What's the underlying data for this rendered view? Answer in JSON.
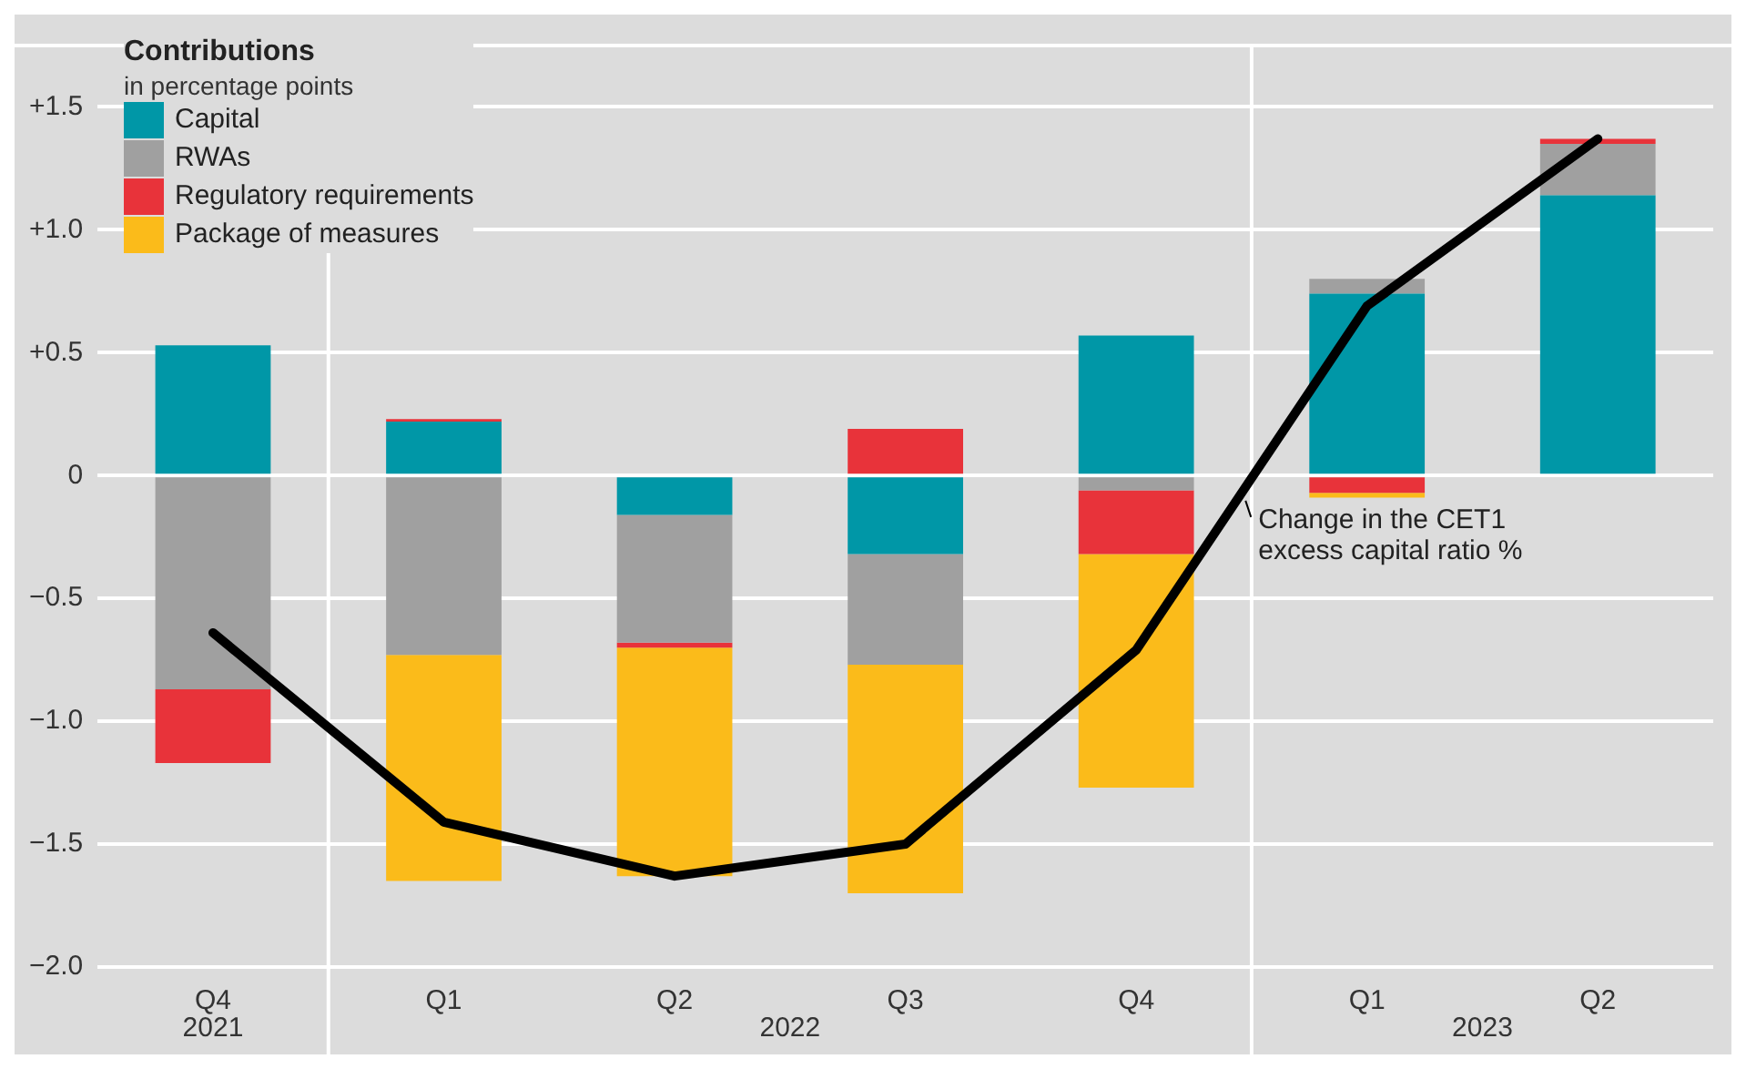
{
  "chart_data": {
    "type": "bar",
    "stacked": true,
    "legend_title": "Contributions",
    "subtitle": "in percentage points",
    "categories": [
      "Q4",
      "Q1",
      "Q2",
      "Q3",
      "Q4",
      "Q1",
      "Q2"
    ],
    "annotations": [
      "2021",
      "2022",
      "2023"
    ],
    "series": [
      {
        "name": "Capital",
        "color": "#0097a7",
        "values": [
          0.53,
          0.22,
          -0.16,
          -0.32,
          0.57,
          0.74,
          1.14
        ]
      },
      {
        "name": "RWAs",
        "color": "#a0a0a0",
        "values": [
          -0.87,
          -0.73,
          -0.52,
          -0.45,
          -0.06,
          0.06,
          0.21
        ]
      },
      {
        "name": "Regulatory requirements",
        "color": "#e8333a",
        "values": [
          -0.3,
          0.01,
          -0.02,
          0.19,
          -0.26,
          -0.07,
          0.02
        ]
      },
      {
        "name": "Package of measures",
        "color": "#fbbb1a",
        "values": [
          null,
          -0.92,
          -0.93,
          -0.93,
          -0.95,
          -0.02,
          null
        ]
      },
      {
        "name": "Change in the CET1 excess capital ratio %",
        "type": "line",
        "color": "#000000",
        "values": [
          -0.64,
          -1.41,
          -1.63,
          -1.5,
          -0.71,
          0.69,
          1.37
        ]
      }
    ],
    "ylim": [
      -2.0,
      1.75
    ],
    "yticks": [
      {
        "value": 1.5,
        "label": "+1.5"
      },
      {
        "value": 1.0,
        "label": "+1.0"
      },
      {
        "value": 0.5,
        "label": "+0.5"
      },
      0,
      {
        "value": -0.5,
        "label": "−0.5"
      },
      {
        "value": -1.0,
        "label": "−1.0"
      },
      {
        "value": -1.5,
        "label": "−1.5"
      },
      {
        "value": -2.0,
        "label": "−2.0"
      }
    ],
    "grid": "y",
    "legend": "top left",
    "marker": "none",
    "line_style": "solid"
  }
}
